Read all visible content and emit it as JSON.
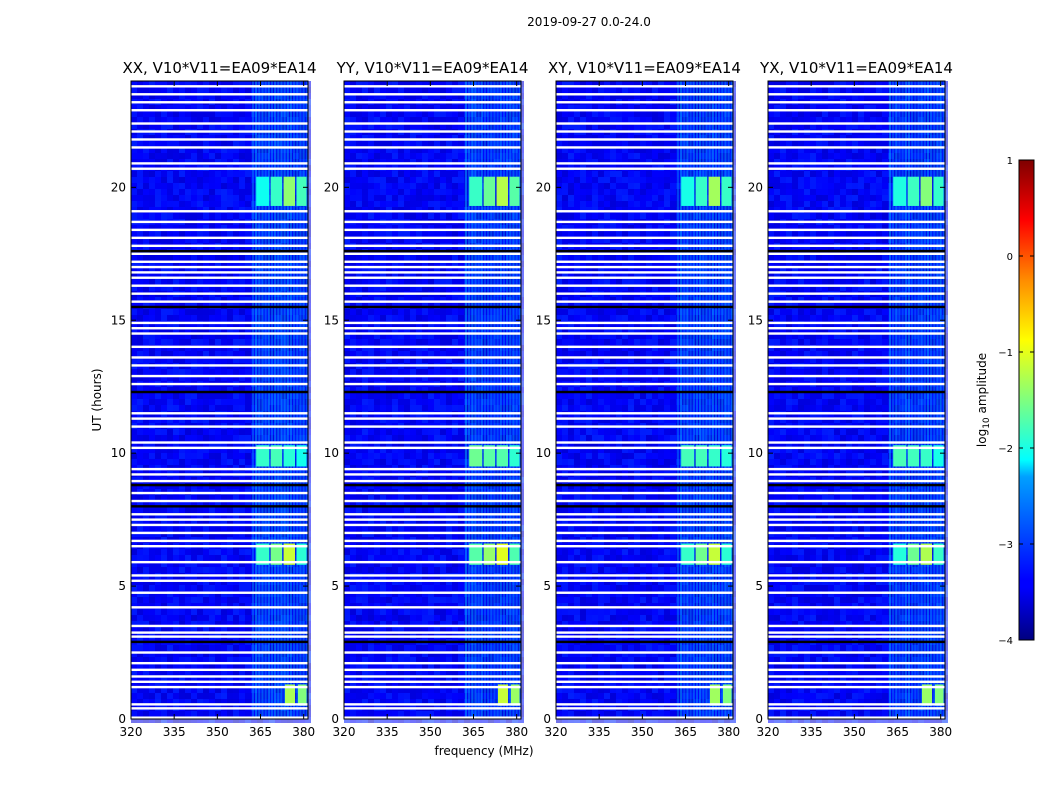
{
  "figure": {
    "suptitle": "2019-09-27 0.0-24.0"
  },
  "chart_data": {
    "type": "heatmap",
    "xlabel": "frequency (MHz)",
    "ylabel": "UT (hours)",
    "xlim": [
      320,
      381.5
    ],
    "ylim": [
      0,
      24
    ],
    "xticks": [
      320,
      335,
      350,
      365,
      380
    ],
    "yticks": [
      0,
      5,
      10,
      15,
      20
    ],
    "panels": [
      {
        "title": "XX, V10*V11=EA09*EA14"
      },
      {
        "title": "YY, V10*V11=EA09*EA14"
      },
      {
        "title": "XY, V10*V11=EA09*EA14"
      },
      {
        "title": "YX, V10*V11=EA09*EA14"
      }
    ],
    "colorbar": {
      "label": "log10 amplitude",
      "label_main": "log",
      "label_sub": "10",
      "label_rest": " amplitude",
      "range": [
        -4,
        1
      ],
      "ticks": [
        1,
        0,
        -1,
        -2,
        -3,
        -4
      ],
      "tick_labels": [
        "1",
        "0",
        "−1",
        "−2",
        "−3",
        "−4"
      ],
      "colormap": "jet"
    },
    "background_level": -3.4,
    "bright_regions": [
      {
        "f": [
          363.5,
          368.0
        ],
        "t": [
          9.5,
          10.3
        ],
        "level": -1.8
      },
      {
        "f": [
          368.5,
          372.5
        ],
        "t": [
          9.5,
          10.3
        ],
        "level": -1.8
      },
      {
        "f": [
          373.0,
          377.0
        ],
        "t": [
          9.5,
          10.3
        ],
        "level": -1.9
      },
      {
        "f": [
          377.5,
          381.0
        ],
        "t": [
          9.5,
          10.3
        ],
        "level": -2.0
      },
      {
        "f": [
          363.5,
          368.0
        ],
        "t": [
          5.8,
          6.6
        ],
        "level": -1.9
      },
      {
        "f": [
          368.5,
          372.5
        ],
        "t": [
          5.8,
          6.6
        ],
        "level": -1.6
      },
      {
        "f": [
          373.0,
          377.0
        ],
        "t": [
          5.8,
          6.6
        ],
        "level": -1.2
      },
      {
        "f": [
          377.5,
          381.0
        ],
        "t": [
          5.8,
          6.6
        ],
        "level": -1.9
      },
      {
        "f": [
          363.5,
          368.0
        ],
        "t": [
          19.3,
          20.4
        ],
        "level": -2.0
      },
      {
        "f": [
          368.5,
          372.5
        ],
        "t": [
          19.3,
          20.4
        ],
        "level": -1.8
      },
      {
        "f": [
          373.0,
          377.0
        ],
        "t": [
          19.3,
          20.4
        ],
        "level": -1.4
      },
      {
        "f": [
          377.5,
          381.0
        ],
        "t": [
          19.3,
          20.4
        ],
        "level": -1.8
      },
      {
        "f": [
          373.5,
          377.0
        ],
        "t": [
          0.5,
          1.3
        ],
        "level": -1.3
      },
      {
        "f": [
          378.0,
          381.0
        ],
        "t": [
          0.5,
          1.3
        ],
        "level": -1.5
      }
    ],
    "flagged_rows": [
      0.05,
      0.4,
      0.55,
      1.2,
      1.4,
      1.6,
      1.85,
      2.1,
      2.5,
      2.9,
      3.1,
      3.25,
      3.5,
      4.2,
      4.75,
      5.2,
      5.4,
      5.9,
      6.5,
      6.7,
      7.0,
      7.3,
      7.5,
      7.7,
      8.0,
      8.2,
      8.5,
      8.8,
      8.95,
      9.2,
      9.4,
      10.2,
      10.4,
      11.0,
      11.3,
      11.5,
      12.3,
      12.6,
      12.9,
      13.3,
      13.6,
      14.0,
      14.5,
      14.7,
      14.9,
      15.5,
      15.7,
      16.0,
      16.3,
      16.6,
      16.8,
      17.0,
      17.2,
      17.5,
      17.6,
      17.8,
      18.1,
      18.4,
      18.7,
      19.1,
      20.7,
      20.9,
      21.5,
      21.8,
      22.1,
      22.4,
      22.9,
      23.2,
      23.5,
      23.8
    ]
  }
}
